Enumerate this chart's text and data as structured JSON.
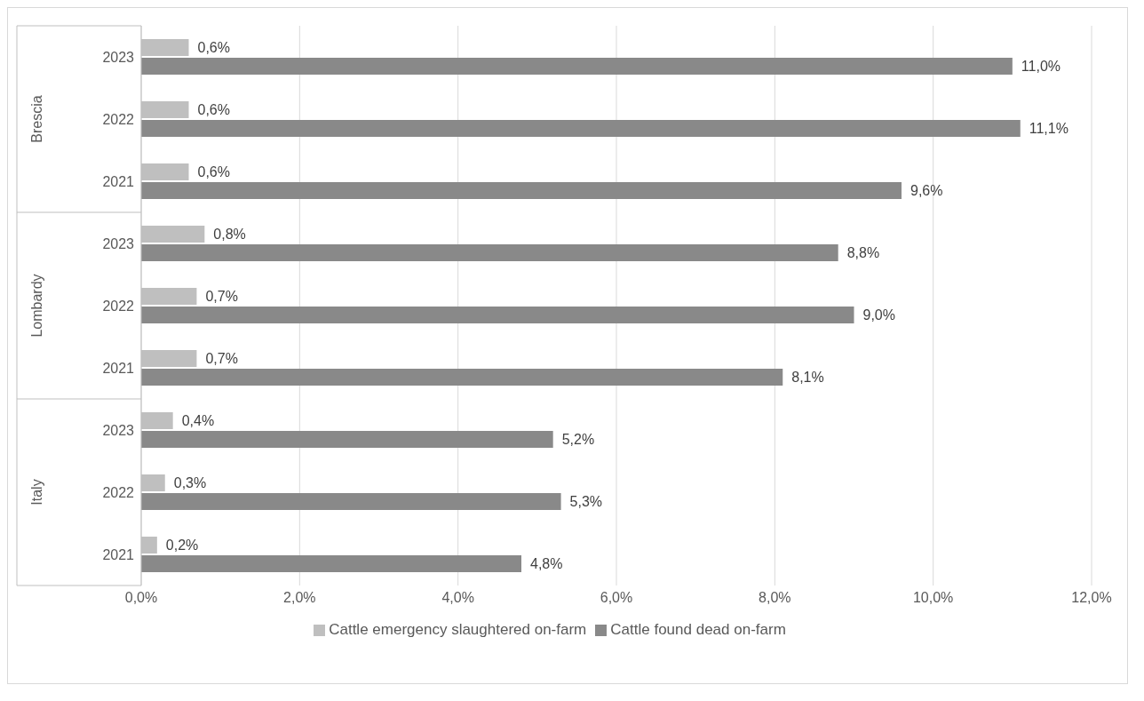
{
  "chart_data": {
    "type": "bar",
    "orientation": "horizontal",
    "categories": [
      "2023",
      "2022",
      "2021",
      "2023",
      "2022",
      "2021",
      "2023",
      "2022",
      "2021"
    ],
    "annotations": [
      "Brescia",
      "Lombardy",
      "Italy"
    ],
    "series": [
      {
        "name": "Cattle emergency slaughtered on-farm",
        "color": "#bfbfbf",
        "values": [
          0.6,
          0.6,
          0.6,
          0.8,
          0.7,
          0.7,
          0.4,
          0.3,
          0.2
        ],
        "value_labels": [
          "0,6%",
          "0,6%",
          "0,6%",
          "0,8%",
          "0,7%",
          "0,7%",
          "0,4%",
          "0,3%",
          "0,2%"
        ]
      },
      {
        "name": "Cattle found dead on-farm",
        "color": "#898989",
        "values": [
          11.0,
          11.1,
          9.6,
          8.8,
          9.0,
          8.1,
          5.2,
          5.3,
          4.8
        ],
        "value_labels": [
          "11,0%",
          "11,1%",
          "9,6%",
          "8,8%",
          "9,0%",
          "8,1%",
          "5,2%",
          "5,3%",
          "4,8%"
        ]
      }
    ],
    "xlim": [
      0,
      12
    ],
    "xticks": [
      {
        "value": 0,
        "label": "0,0%"
      },
      {
        "value": 2,
        "label": "2,0%"
      },
      {
        "value": 4,
        "label": "4,0%"
      },
      {
        "value": 6,
        "label": "6,0%"
      },
      {
        "value": 8,
        "label": "8,0%"
      },
      {
        "value": 10,
        "label": "10,0%"
      },
      {
        "value": 12,
        "label": "12,0%"
      }
    ],
    "grid": "x",
    "legend": "bottom"
  }
}
